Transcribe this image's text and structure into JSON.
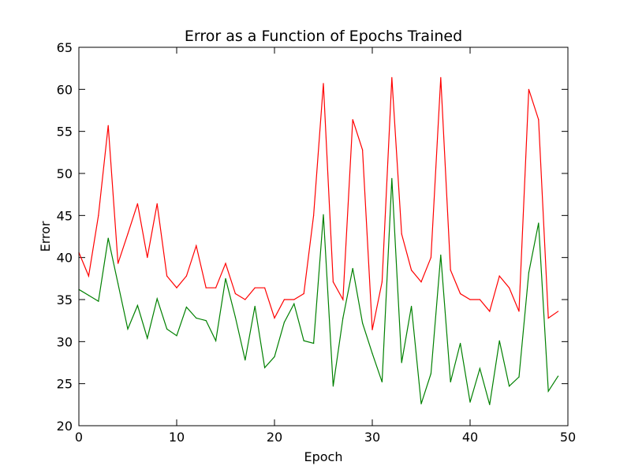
{
  "chart_data": {
    "type": "line",
    "title": "Error as a Function of Epochs Trained",
    "xlabel": "Epoch",
    "ylabel": "Error",
    "xlim": [
      0,
      50
    ],
    "ylim": [
      20,
      65
    ],
    "xticks": [
      0,
      10,
      20,
      30,
      40,
      50
    ],
    "yticks": [
      20,
      25,
      30,
      35,
      40,
      45,
      50,
      55,
      60,
      65
    ],
    "grid": false,
    "x": [
      0,
      1,
      2,
      3,
      4,
      5,
      6,
      7,
      8,
      9,
      10,
      11,
      12,
      13,
      14,
      15,
      16,
      17,
      18,
      19,
      20,
      21,
      22,
      23,
      24,
      25,
      26,
      27,
      28,
      29,
      30,
      31,
      32,
      33,
      34,
      35,
      36,
      37,
      38,
      39,
      40,
      41,
      42,
      43,
      44,
      45,
      46,
      47,
      48,
      49
    ],
    "series": [
      {
        "color": "#ff0000",
        "values": [
          40.6,
          37.8,
          45.0,
          55.7,
          39.3,
          42.8,
          46.4,
          40.0,
          46.4,
          37.8,
          36.4,
          37.8,
          41.4,
          36.4,
          36.4,
          39.3,
          35.7,
          35.0,
          36.4,
          36.4,
          32.8,
          35.0,
          35.0,
          35.7,
          45.0,
          60.7,
          37.1,
          35.0,
          56.4,
          52.8,
          31.4,
          37.1,
          61.4,
          42.8,
          38.5,
          37.1,
          40.0,
          61.4,
          38.5,
          35.7,
          35.0,
          35.0,
          33.6,
          37.8,
          36.4,
          33.6,
          60.0,
          56.4,
          32.8,
          33.6
        ]
      },
      {
        "color": "#008000",
        "values": [
          36.2,
          35.5,
          34.8,
          42.3,
          36.9,
          31.5,
          34.3,
          30.4,
          35.1,
          31.5,
          30.7,
          34.1,
          32.8,
          32.5,
          30.1,
          37.5,
          32.9,
          27.8,
          34.2,
          26.9,
          28.2,
          32.3,
          34.5,
          30.1,
          29.8,
          45.1,
          24.7,
          32.8,
          38.7,
          32.2,
          28.6,
          25.2,
          49.4,
          27.5,
          34.2,
          22.6,
          26.2,
          40.3,
          25.2,
          29.8,
          22.8,
          26.8,
          22.5,
          30.1,
          24.7,
          25.8,
          38.2,
          44.1,
          24.1,
          25.9
        ]
      }
    ]
  }
}
